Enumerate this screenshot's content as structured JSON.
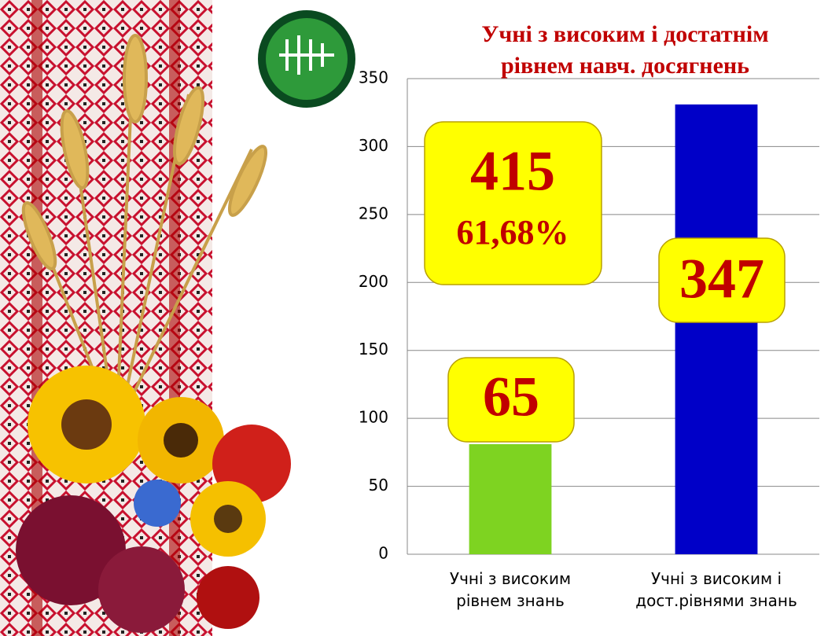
{
  "chart_data": {
    "type": "bar",
    "title_lines": [
      "Учні  з високим і достатнім",
      "рівнем навч. досягнень"
    ],
    "categories": [
      "Учні з високим рівнем знань",
      "Учні з високим і дост.рівнями знань"
    ],
    "series": [
      {
        "name": null,
        "colors": [
          "#7ed321",
          "#0000c8"
        ],
        "values": [
          81,
          331
        ]
      }
    ],
    "ylim": [
      0,
      350
    ],
    "yticks": [
      0,
      50,
      100,
      150,
      200,
      250,
      300,
      350
    ],
    "grid": true,
    "annotations": [
      "415",
      "61,68%",
      "65",
      "347"
    ]
  }
}
